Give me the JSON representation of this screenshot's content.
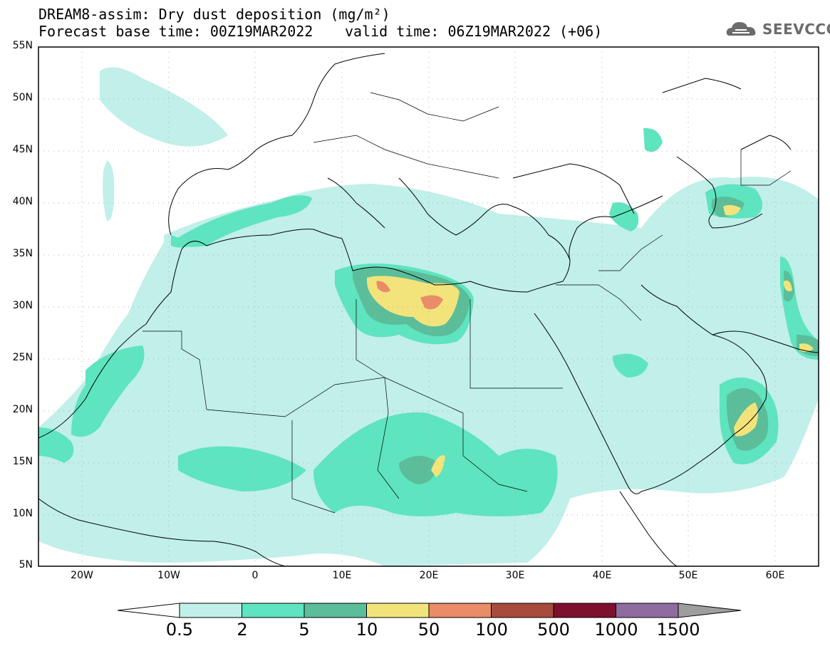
{
  "title": {
    "line1": "DREAM8-assim: Dry dust deposition (mg/m²)",
    "line2": "Forecast base time: 00Z19MAR2022",
    "valid": "valid time: 06Z19MAR2022 (+06)"
  },
  "logo": {
    "text": "SEEVCCC",
    "icon": "cloud-icon"
  },
  "map": {
    "projection": "lat-lon",
    "lon_range": [
      -25,
      65
    ],
    "lat_range": [
      5,
      55
    ],
    "grid": "dotted",
    "lat_labels": [
      "55N",
      "50N",
      "45N",
      "40N",
      "35N",
      "30N",
      "25N",
      "20N",
      "15N",
      "10N",
      "5N"
    ],
    "lon_labels": [
      "20W",
      "10W",
      "0",
      "10E",
      "20E",
      "30E",
      "40E",
      "50E",
      "60E"
    ]
  },
  "colorbar": {
    "labels": [
      "0.5",
      "2",
      "5",
      "10",
      "50",
      "100",
      "500",
      "1000",
      "1500"
    ],
    "colors": [
      "#c1efe9",
      "#5ee4bf",
      "#5cbd9a",
      "#f2e47a",
      "#ea8c68",
      "#a84b3e",
      "#7e0f2e",
      "#8f6ca0",
      "#9e9e9e"
    ],
    "units": "mg/m²"
  }
}
